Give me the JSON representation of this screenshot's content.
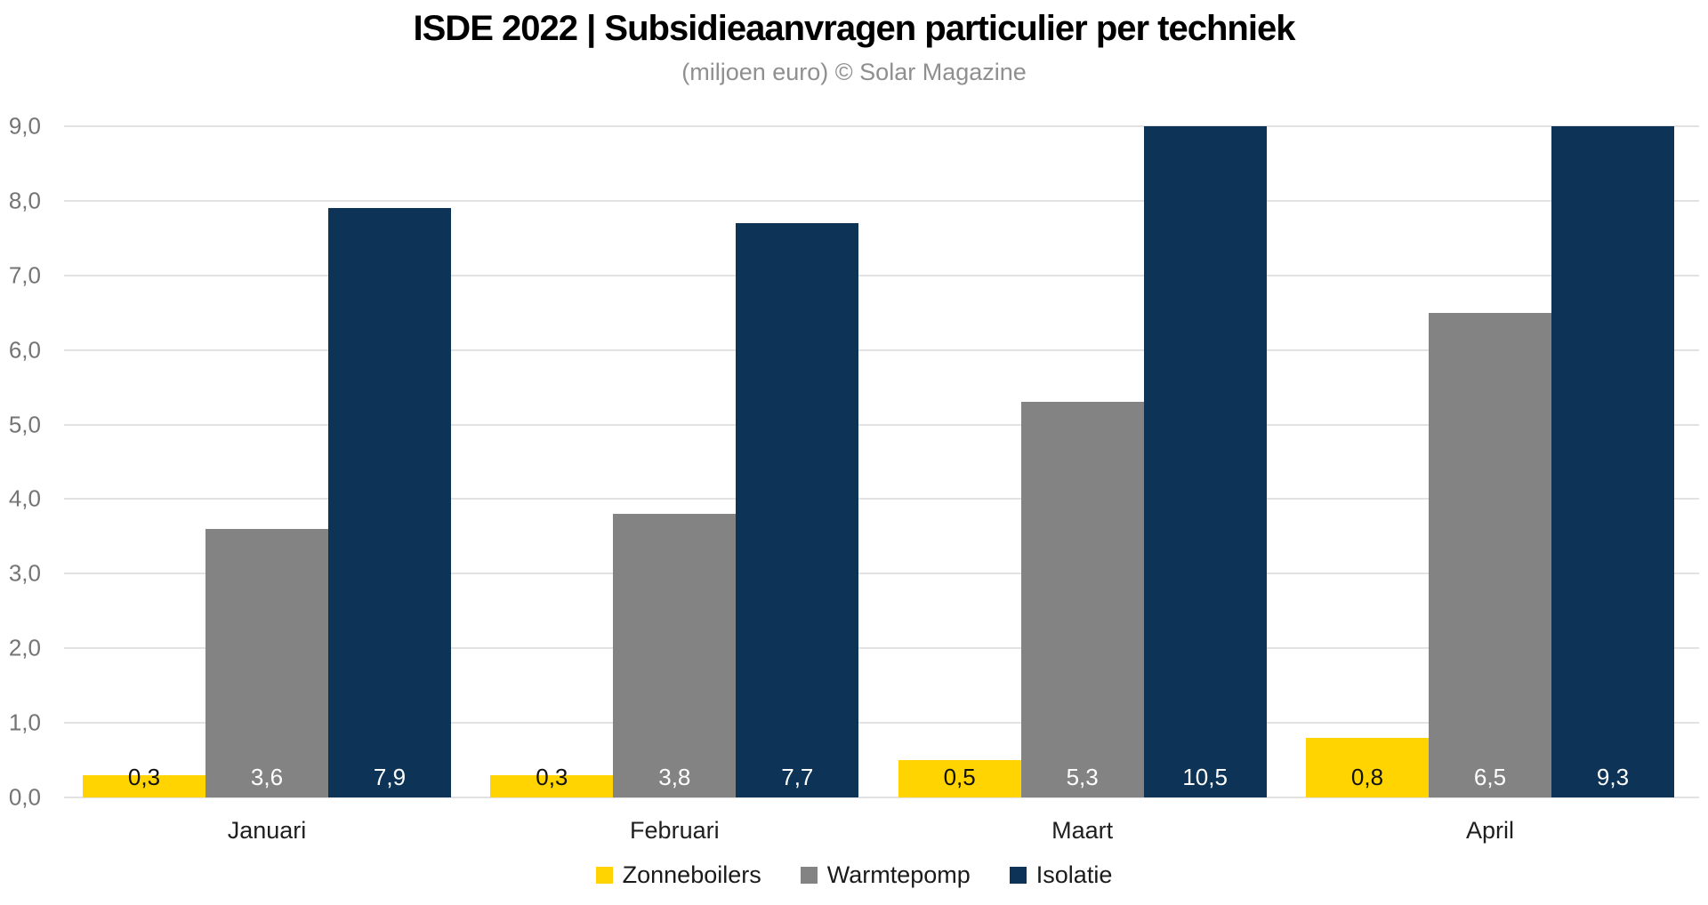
{
  "title": "ISDE 2022 | Subsidieaanvragen particulier per techniek",
  "subtitle": "(miljoen euro) © Solar Magazine",
  "chart_data": {
    "type": "bar",
    "title": "ISDE 2022 | Subsidieaanvragen particulier per techniek",
    "subtitle": "(miljoen euro) © Solar Magazine",
    "categories": [
      "Januari",
      "Februari",
      "Maart",
      "April"
    ],
    "series": [
      {
        "name": "Zonneboilers",
        "color": "#ffd400",
        "label_color": "#111111",
        "values": [
          0.3,
          0.3,
          0.5,
          0.8
        ],
        "labels": [
          "0,3",
          "0,3",
          "0,5",
          "0,8"
        ]
      },
      {
        "name": "Warmtepomp",
        "color": "#838383",
        "label_color": "#ffffff",
        "values": [
          3.6,
          3.8,
          5.3,
          6.5
        ],
        "labels": [
          "3,6",
          "3,8",
          "5,3",
          "6,5"
        ]
      },
      {
        "name": "Isolatie",
        "color": "#0d3356",
        "label_color": "#ffffff",
        "values": [
          7.9,
          7.7,
          10.5,
          9.3
        ],
        "labels": [
          "7,9",
          "7,7",
          "10,5",
          "9,3"
        ]
      }
    ],
    "ylim": [
      0,
      9
    ],
    "bar_clip_max": 9,
    "yticks": [
      {
        "value": 0,
        "label": "0,0"
      },
      {
        "value": 1,
        "label": "1,0"
      },
      {
        "value": 2,
        "label": "2,0"
      },
      {
        "value": 3,
        "label": "3,0"
      },
      {
        "value": 4,
        "label": "4,0"
      },
      {
        "value": 5,
        "label": "5,0"
      },
      {
        "value": 6,
        "label": "6,0"
      },
      {
        "value": 7,
        "label": "7,0"
      },
      {
        "value": 8,
        "label": "8,0"
      },
      {
        "value": 9,
        "label": "9,0"
      }
    ],
    "grid": "horizontal",
    "legend_position": "bottom"
  }
}
